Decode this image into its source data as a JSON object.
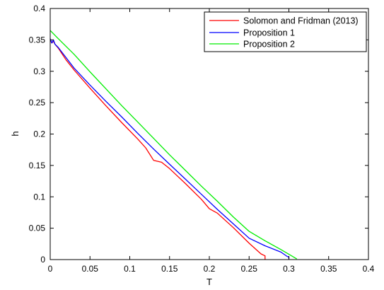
{
  "chart_data": {
    "type": "line",
    "title": "",
    "xlabel": "T",
    "ylabel": "h",
    "xlim": [
      0,
      0.4
    ],
    "ylim": [
      0,
      0.4
    ],
    "xticks": [
      "0",
      "0.05",
      "0.1",
      "0.15",
      "0.2",
      "0.25",
      "0.3",
      "0.35",
      "0.4"
    ],
    "yticks": [
      "0",
      "0.05",
      "0.1",
      "0.15",
      "0.2",
      "0.25",
      "0.3",
      "0.35",
      "0.4"
    ],
    "grid": false,
    "legend_position": "top-right",
    "series": [
      {
        "name": "Solomon and Fridman (2013)",
        "color": "#ff0000",
        "x": [
          0,
          0.002,
          0.004,
          0.006,
          0.01,
          0.02,
          0.03,
          0.05,
          0.07,
          0.09,
          0.11,
          0.12,
          0.13,
          0.14,
          0.15,
          0.17,
          0.19,
          0.2,
          0.21,
          0.23,
          0.25,
          0.265,
          0.27,
          0.27
        ],
        "y": [
          0.35,
          0.345,
          0.348,
          0.343,
          0.337,
          0.318,
          0.302,
          0.273,
          0.245,
          0.218,
          0.192,
          0.178,
          0.158,
          0.155,
          0.145,
          0.121,
          0.096,
          0.081,
          0.074,
          0.051,
          0.026,
          0.009,
          0.006,
          0
        ]
      },
      {
        "name": "Proposition 1",
        "color": "#0000ff",
        "x": [
          0,
          0.002,
          0.004,
          0.006,
          0.01,
          0.03,
          0.05,
          0.07,
          0.09,
          0.11,
          0.13,
          0.15,
          0.17,
          0.19,
          0.21,
          0.23,
          0.25,
          0.27,
          0.29,
          0.298,
          0.3,
          0.3
        ],
        "y": [
          0.352,
          0.345,
          0.35,
          0.343,
          0.338,
          0.305,
          0.278,
          0.252,
          0.227,
          0.201,
          0.176,
          0.152,
          0.128,
          0.104,
          0.08,
          0.057,
          0.034,
          0.022,
          0.012,
          0.005,
          0.004,
          0
        ]
      },
      {
        "name": "Proposition 2",
        "color": "#00ee00",
        "x": [
          0,
          0.01,
          0.03,
          0.05,
          0.07,
          0.09,
          0.11,
          0.13,
          0.15,
          0.17,
          0.19,
          0.21,
          0.23,
          0.25,
          0.27,
          0.29,
          0.31
        ],
        "y": [
          0.365,
          0.352,
          0.327,
          0.299,
          0.272,
          0.245,
          0.219,
          0.193,
          0.167,
          0.142,
          0.117,
          0.093,
          0.068,
          0.045,
          0.03,
          0.016,
          0.001
        ]
      }
    ]
  }
}
